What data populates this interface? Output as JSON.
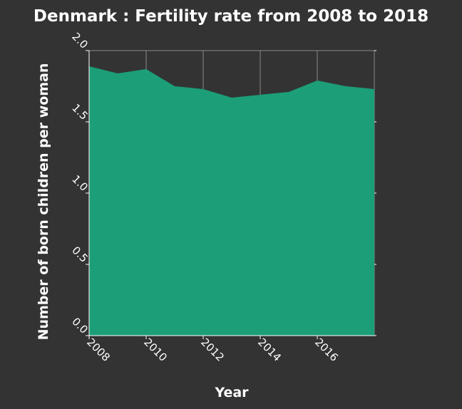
{
  "chart_data": {
    "type": "area",
    "title": "Denmark : Fertility rate from 2008 to 2018",
    "xlabel": "Year",
    "ylabel": "Number of born children per woman",
    "x": [
      2008,
      2009,
      2010,
      2011,
      2012,
      2013,
      2014,
      2015,
      2016,
      2017,
      2018
    ],
    "series": [
      {
        "values": [
          1.89,
          1.84,
          1.87,
          1.75,
          1.73,
          1.67,
          1.69,
          1.71,
          1.79,
          1.75,
          1.73
        ]
      }
    ],
    "xlim": [
      2008,
      2018
    ],
    "ylim": [
      0,
      2.0
    ],
    "xticks": [
      "2008",
      "2010",
      "2012",
      "2014",
      "2016"
    ],
    "yticks": [
      "0.0",
      "0.5",
      "1.0",
      "1.5",
      "2.0"
    ],
    "grid": true,
    "colors": {
      "fill": "#1c9e78",
      "background": "#333333",
      "text": "#ffffff"
    }
  }
}
